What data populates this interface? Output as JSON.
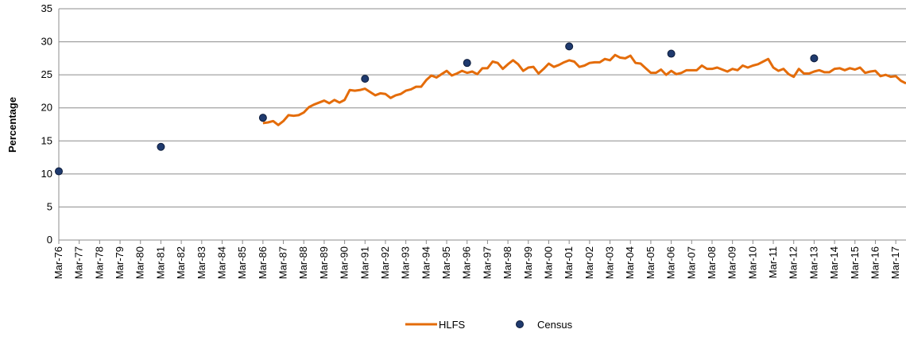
{
  "chart_data": {
    "type": "line",
    "y_label": "Percentage",
    "categories": [
      "Mar-76",
      null,
      null,
      null,
      "Mar-77",
      null,
      null,
      null,
      "Mar-78",
      null,
      null,
      null,
      "Mar-79",
      null,
      null,
      null,
      "Mar-80",
      null,
      null,
      null,
      "Mar-81",
      null,
      null,
      null,
      "Mar-82",
      null,
      null,
      null,
      "Mar-83",
      null,
      null,
      null,
      "Mar-84",
      null,
      null,
      null,
      "Mar-85",
      null,
      null,
      null,
      "Mar-86",
      null,
      null,
      null,
      "Mar-87",
      null,
      null,
      null,
      "Mar-88",
      null,
      null,
      null,
      "Mar-89",
      null,
      null,
      null,
      "Mar-90",
      null,
      null,
      null,
      "Mar-91",
      null,
      null,
      null,
      "Mar-92",
      null,
      null,
      null,
      "Mar-93",
      null,
      null,
      null,
      "Mar-94",
      null,
      null,
      null,
      "Mar-95",
      null,
      null,
      null,
      "Mar-96",
      null,
      null,
      null,
      "Mar-97",
      null,
      null,
      null,
      "Mar-98",
      null,
      null,
      null,
      "Mar-99",
      null,
      null,
      null,
      "Mar-00",
      null,
      null,
      null,
      "Mar-01",
      null,
      null,
      null,
      "Mar-02",
      null,
      null,
      null,
      "Mar-03",
      null,
      null,
      null,
      "Mar-04",
      null,
      null,
      null,
      "Mar-05",
      null,
      null,
      null,
      "Mar-06",
      null,
      null,
      null,
      "Mar-07",
      null,
      null,
      null,
      "Mar-08",
      null,
      null,
      null,
      "Mar-09",
      null,
      null,
      null,
      "Mar-10",
      null,
      null,
      null,
      "Mar-11",
      null,
      null,
      null,
      "Mar-12",
      null,
      null,
      null,
      "Mar-13",
      null,
      null,
      null,
      "Mar-14",
      null,
      null,
      null,
      "Mar-15",
      null,
      null,
      null,
      "Mar-16",
      null,
      null,
      null,
      "Mar-17",
      null,
      null
    ],
    "series": [
      {
        "name": "HLFS",
        "kind": "line",
        "color": "#e46c0a",
        "values": [
          null,
          null,
          null,
          null,
          null,
          null,
          null,
          null,
          null,
          null,
          null,
          null,
          null,
          null,
          null,
          null,
          null,
          null,
          null,
          null,
          null,
          null,
          null,
          null,
          null,
          null,
          null,
          null,
          null,
          null,
          null,
          null,
          null,
          null,
          null,
          null,
          null,
          null,
          null,
          null,
          17.7,
          17.8,
          18.0,
          17.4,
          18.0,
          18.9,
          18.8,
          18.9,
          19.3,
          20.1,
          20.5,
          20.8,
          21.1,
          20.7,
          21.2,
          20.8,
          21.2,
          22.7,
          22.6,
          22.7,
          22.9,
          22.4,
          21.9,
          22.2,
          22.1,
          21.5,
          21.9,
          22.1,
          22.6,
          22.8,
          23.2,
          23.2,
          24.2,
          24.9,
          24.6,
          25.1,
          25.6,
          24.9,
          25.2,
          25.6,
          25.3,
          25.5,
          25.1,
          26.0,
          26.0,
          27.0,
          26.8,
          25.9,
          26.6,
          27.2,
          26.6,
          25.6,
          26.1,
          26.2,
          25.2,
          25.9,
          26.7,
          26.2,
          26.5,
          26.9,
          27.2,
          27.0,
          26.2,
          26.4,
          26.8,
          26.9,
          26.9,
          27.4,
          27.2,
          28.0,
          27.6,
          27.5,
          27.9,
          26.8,
          26.7,
          26.0,
          25.3,
          25.3,
          25.8,
          25.0,
          25.6,
          25.1,
          25.3,
          25.7,
          25.7,
          25.7,
          26.4,
          25.9,
          25.9,
          26.1,
          25.8,
          25.5,
          25.9,
          25.7,
          26.4,
          26.1,
          26.4,
          26.6,
          27.0,
          27.4,
          26.1,
          25.6,
          25.9,
          25.1,
          24.7,
          25.9,
          25.2,
          25.2,
          25.5,
          25.7,
          25.4,
          25.4,
          25.9,
          26.0,
          25.7,
          26.0,
          25.8,
          26.1,
          25.3,
          25.5,
          25.6,
          24.8,
          25.0,
          24.7,
          24.8,
          24.1,
          23.7
        ]
      },
      {
        "name": "Census",
        "kind": "scatter",
        "color": "#1f3a6e",
        "values": [
          10.4,
          null,
          null,
          null,
          null,
          null,
          null,
          null,
          null,
          null,
          null,
          null,
          null,
          null,
          null,
          null,
          null,
          null,
          null,
          null,
          14.1,
          null,
          null,
          null,
          null,
          null,
          null,
          null,
          null,
          null,
          null,
          null,
          null,
          null,
          null,
          null,
          null,
          null,
          null,
          null,
          18.5,
          null,
          null,
          null,
          null,
          null,
          null,
          null,
          null,
          null,
          null,
          null,
          null,
          null,
          null,
          null,
          null,
          null,
          null,
          null,
          24.4,
          null,
          null,
          null,
          null,
          null,
          null,
          null,
          null,
          null,
          null,
          null,
          null,
          null,
          null,
          null,
          null,
          null,
          null,
          null,
          26.8,
          null,
          null,
          null,
          null,
          null,
          null,
          null,
          null,
          null,
          null,
          null,
          null,
          null,
          null,
          null,
          null,
          null,
          null,
          null,
          29.3,
          null,
          null,
          null,
          null,
          null,
          null,
          null,
          null,
          null,
          null,
          null,
          null,
          null,
          null,
          null,
          null,
          null,
          null,
          null,
          28.2,
          null,
          null,
          null,
          null,
          null,
          null,
          null,
          null,
          null,
          null,
          null,
          null,
          null,
          null,
          null,
          null,
          null,
          null,
          null,
          null,
          null,
          null,
          null,
          null,
          null,
          null,
          null,
          27.5,
          null,
          null,
          null,
          null,
          null,
          null,
          null,
          null,
          null,
          null,
          null,
          null,
          null,
          null,
          null,
          null,
          null
        ]
      }
    ],
    "ylim": [
      0,
      35
    ],
    "yticks": [
      0,
      5,
      10,
      15,
      20,
      25,
      30,
      35
    ],
    "grid": true
  }
}
